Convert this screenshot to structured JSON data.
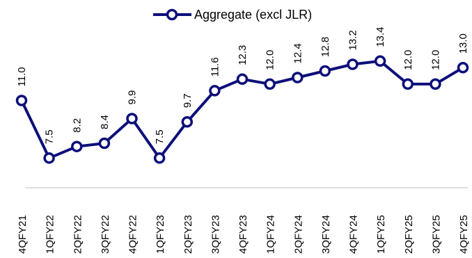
{
  "chart_data": {
    "type": "line",
    "categories": [
      "4QFY21",
      "1QFY22",
      "2QFY22",
      "3QFY22",
      "4QFY22",
      "1QFY23",
      "2QFY23",
      "3QFY23",
      "4QFY23",
      "1QFY24",
      "2QFY24",
      "3QFY24",
      "4QFY24",
      "1QFY25",
      "2QFY25",
      "3QFY25",
      "4QFY25"
    ],
    "series": [
      {
        "name": "Aggregate (excl JLR)",
        "values": [
          11.0,
          7.5,
          8.2,
          8.4,
          9.9,
          7.5,
          9.7,
          11.6,
          12.3,
          12.0,
          12.4,
          12.8,
          13.2,
          13.4,
          12.0,
          12.0,
          13.0
        ],
        "labels": [
          "11.0",
          "7.5",
          "8.2",
          "8.4",
          "9.9",
          "7.5",
          "9.7",
          "11.6",
          "12.3",
          "12.0",
          "12.4",
          "12.8",
          "13.2",
          "13.4",
          "12.0",
          "12.0",
          "13.0"
        ],
        "color": "#0d0f7a"
      }
    ],
    "legend_position": "top-center",
    "grid": false,
    "ylim": [
      4.0,
      15.0
    ]
  }
}
